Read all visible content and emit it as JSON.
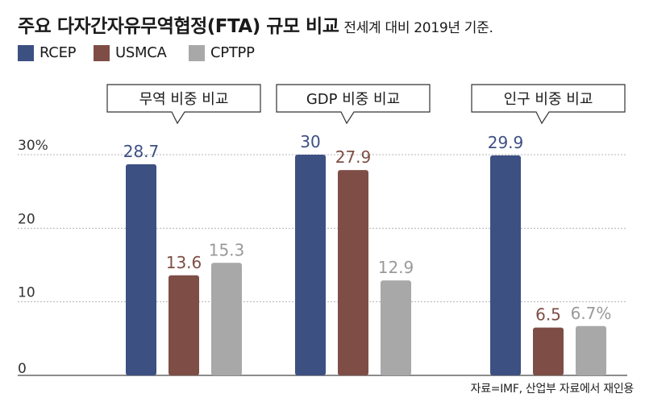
{
  "title": {
    "main": "주요 다자간자유무역협정(FTA) 규모 비교",
    "sub": "전세계 대비 2019년 기준."
  },
  "source": "자료=IMF, 산업부 자료에서 재인용",
  "colors": {
    "RCEP": "#3d5082",
    "USMCA": "#7e4e46",
    "CPTPP": "#a8a8a8"
  },
  "chart_data": {
    "type": "bar",
    "title": "주요 다자간자유무역협정(FTA) 규모 비교",
    "subtitle": "전세계 대비 2019년 기준.",
    "ylim": [
      0,
      30
    ],
    "yticks": [
      "0",
      "10",
      "20",
      "30%"
    ],
    "grid": true,
    "legend": "top-left",
    "series_names": [
      "RCEP",
      "USMCA",
      "CPTPP"
    ],
    "groups": [
      {
        "label": "무역 비중 비교",
        "values": [
          28.7,
          13.6,
          15.3
        ],
        "value_labels": [
          "28.7",
          "13.6",
          "15.3"
        ]
      },
      {
        "label": "GDP 비중 비교",
        "values": [
          30,
          27.9,
          12.9
        ],
        "value_labels": [
          "30",
          "27.9",
          "12.9"
        ]
      },
      {
        "label": "인구 비중 비교",
        "values": [
          29.9,
          6.5,
          6.7
        ],
        "value_labels": [
          "29.9",
          "6.5",
          "6.7%"
        ]
      }
    ]
  }
}
